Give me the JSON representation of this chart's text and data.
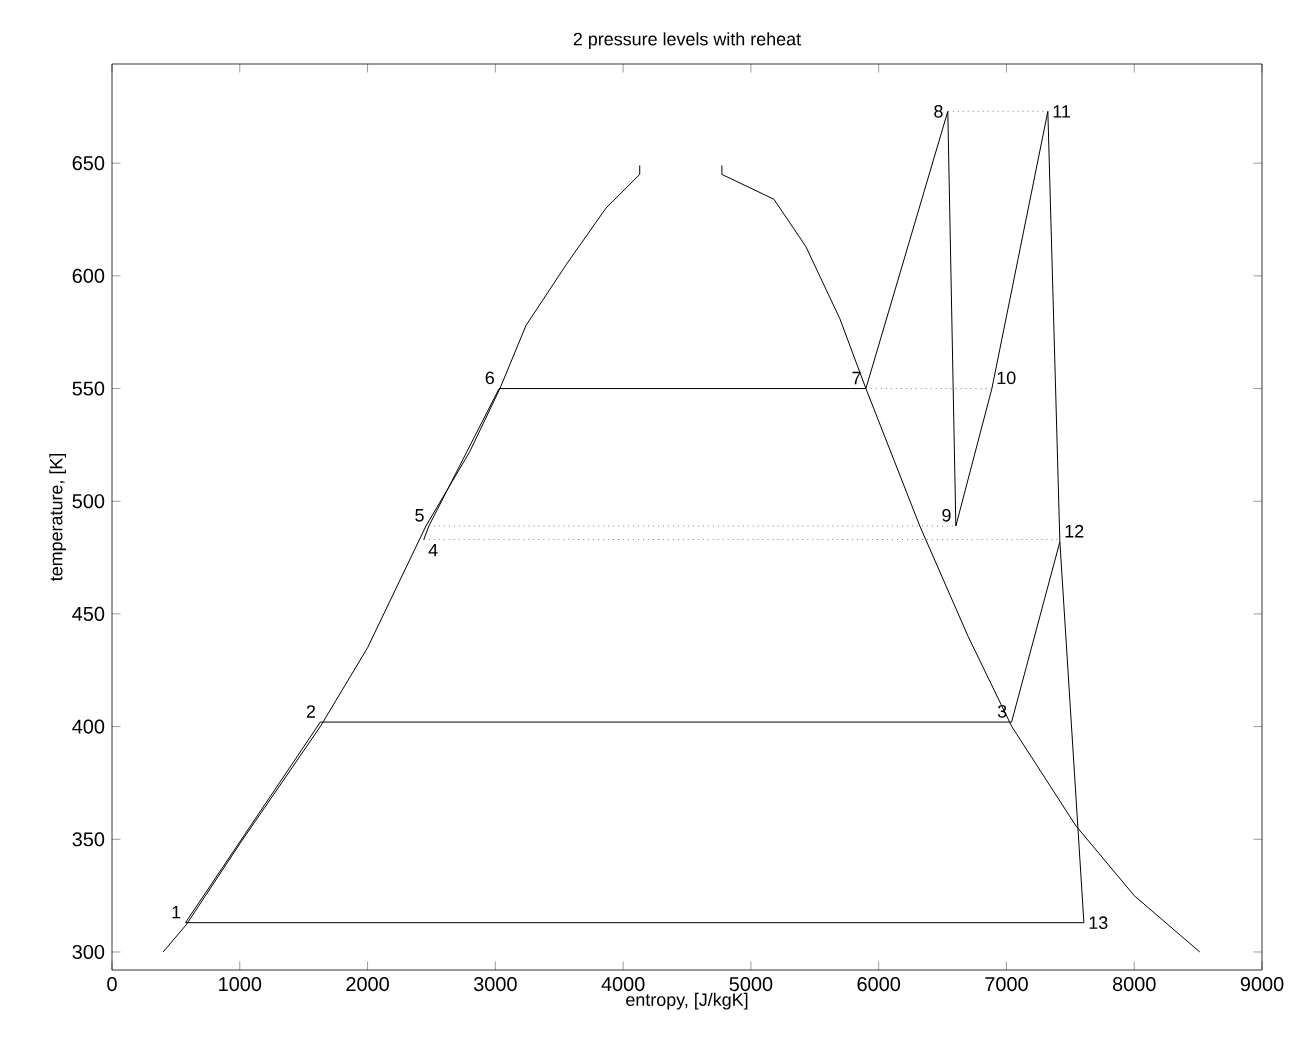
{
  "chart_data": {
    "type": "line",
    "title": "2 pressure levels with reheat",
    "xlabel": "entropy, [J/kgK]",
    "ylabel": "temperature, [K]",
    "xlim": [
      0,
      9000
    ],
    "ylim": [
      292,
      694
    ],
    "xticks": [
      0,
      1000,
      2000,
      3000,
      4000,
      5000,
      6000,
      7000,
      8000,
      9000
    ],
    "yticks": [
      300,
      350,
      400,
      450,
      500,
      550,
      600,
      650
    ],
    "grid": false,
    "marker": "none",
    "series": [
      {
        "color": "#000000",
        "line_style": "solid",
        "x": [
          400,
          580,
          1000,
          1630,
          2000,
          2457,
          2800,
          3036,
          3240,
          3555,
          3865,
          4130,
          4130
        ],
        "values": [
          300,
          312,
          348,
          400,
          435,
          489,
          522,
          550,
          578,
          605,
          630,
          645,
          649
        ]
      },
      {
        "color": "#000000",
        "line_style": "solid",
        "x": [
          4773,
          4773,
          5180,
          5430,
          5696,
          5900,
          6322,
          6700,
          7042,
          7543,
          8000,
          8513
        ],
        "values": [
          649,
          645,
          634,
          613,
          581,
          550,
          489,
          440,
          400,
          356,
          325,
          300
        ]
      },
      {
        "color": "#000000",
        "line_style": "solid",
        "x": [
          575,
          1630,
          7040,
          7418
        ],
        "values": [
          313,
          402,
          402,
          482
        ]
      },
      {
        "color": "#000000",
        "line_style": "solid",
        "x": [
          2440,
          2480,
          3030,
          5900,
          6541,
          6604,
          6886,
          7324,
          7418,
          7606,
          575
        ],
        "values": [
          483,
          489,
          550,
          550,
          673,
          489,
          550,
          673,
          482,
          313,
          313
        ]
      },
      {
        "color": "#808080",
        "line_style": "dotted",
        "x": [
          6541,
          7324
        ],
        "values": [
          673,
          673
        ]
      },
      {
        "color": "#808080",
        "line_style": "dotted",
        "x": [
          5900,
          6886
        ],
        "values": [
          550,
          550
        ]
      },
      {
        "color": "#808080",
        "line_style": "dotted",
        "x": [
          2480,
          6604
        ],
        "values": [
          489,
          489
        ]
      },
      {
        "color": "#808080",
        "line_style": "dotted",
        "x": [
          2440,
          7418
        ],
        "values": [
          483,
          483
        ]
      }
    ],
    "annotations": [
      {
        "text": "1",
        "x": 575,
        "y": 313
      },
      {
        "text": "2",
        "x": 1630,
        "y": 402
      },
      {
        "text": "3",
        "x": 7040,
        "y": 402
      },
      {
        "text": "4",
        "x": 2440,
        "y": 483
      },
      {
        "text": "5",
        "x": 2480,
        "y": 489
      },
      {
        "text": "6",
        "x": 3030,
        "y": 550
      },
      {
        "text": "7",
        "x": 5900,
        "y": 550
      },
      {
        "text": "8",
        "x": 6541,
        "y": 673
      },
      {
        "text": "9",
        "x": 6604,
        "y": 489
      },
      {
        "text": "10",
        "x": 6886,
        "y": 550
      },
      {
        "text": "11",
        "x": 7324,
        "y": 673
      },
      {
        "text": "12",
        "x": 7418,
        "y": 482
      },
      {
        "text": "13",
        "x": 7606,
        "y": 313
      }
    ]
  }
}
